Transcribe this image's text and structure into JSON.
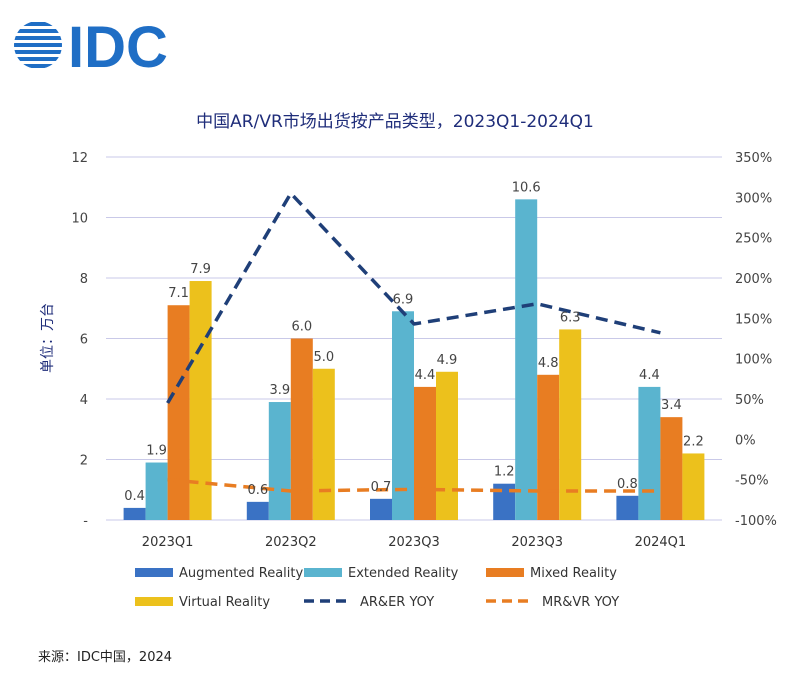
{
  "logo": {
    "text": "IDC",
    "color": "#1f6ec5"
  },
  "source": "来源：IDC中国，2024",
  "chart_data": {
    "type": "bar",
    "title": "中国AR/VR市场出货按产品类型，2023Q1-2024Q1",
    "ylabel": "单位：万台",
    "categories": [
      "2023Q1",
      "2023Q2",
      "2023Q3",
      "2023Q3",
      "2024Q1"
    ],
    "ylim": [
      0,
      12
    ],
    "yticks": [
      "-",
      "2",
      "4",
      "6",
      "8",
      "10",
      "12"
    ],
    "y2lim": [
      -100,
      350
    ],
    "y2ticks": [
      "-100%",
      "-50%",
      "0%",
      "50%",
      "100%",
      "150%",
      "200%",
      "250%",
      "300%",
      "350%"
    ],
    "grid": true,
    "legend_position": "bottom",
    "series": [
      {
        "name": "Augmented Reality",
        "color": "#3a72c4",
        "values": [
          0.4,
          0.6,
          0.7,
          1.2,
          0.8
        ],
        "labels": [
          "0.4",
          "0.6",
          "0.7",
          "1.2",
          "0.8"
        ]
      },
      {
        "name": "Extended Reality",
        "color": "#5ab4cf",
        "values": [
          1.9,
          3.9,
          6.9,
          10.6,
          4.4
        ],
        "labels": [
          "1.9",
          "3.9",
          "6.9",
          "10.6",
          "4.4"
        ]
      },
      {
        "name": "Mixed Reality",
        "color": "#e87d22",
        "values": [
          7.1,
          6.0,
          4.4,
          4.8,
          3.4
        ],
        "labels": [
          "7.1",
          "6.0",
          "4.4",
          "4.8",
          "3.4"
        ]
      },
      {
        "name": "Virtual Reality",
        "color": "#ecc11c",
        "values": [
          7.9,
          5.0,
          4.9,
          6.3,
          2.2
        ],
        "labels": [
          "7.9",
          "5.0",
          "4.9",
          "6.3",
          "2.2"
        ]
      }
    ],
    "lines": [
      {
        "name": "AR&ER YOY",
        "color": "#1f3f78",
        "axis": "right",
        "style": "dashed",
        "values": [
          45,
          305,
          143,
          168,
          132
        ]
      },
      {
        "name": "MR&VR YOY",
        "color": "#e87d22",
        "axis": "right",
        "style": "dashed",
        "values": [
          -50,
          -64,
          -62,
          -64,
          -64
        ]
      }
    ]
  }
}
